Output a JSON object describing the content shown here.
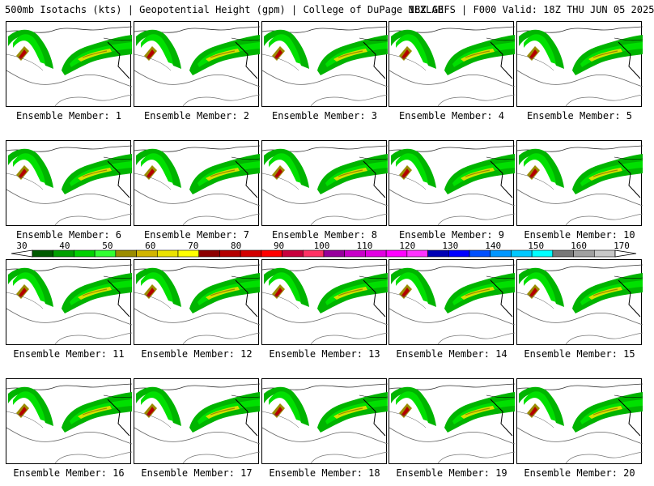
{
  "header": {
    "left": "500mb Isotachs (kts) | Geopotential Height (gpm) | College of DuPage NEXLAB",
    "right": "18Z GEFS | F000 Valid: 18Z THU JUN 05 2025"
  },
  "colorbar": {
    "ticks": [
      "30",
      "40",
      "50",
      "60",
      "70",
      "80",
      "90",
      "100",
      "110",
      "120",
      "130",
      "140",
      "150",
      "160",
      "170"
    ],
    "colors": [
      "#005a00",
      "#00a000",
      "#00d200",
      "#32ff32",
      "#9b8c00",
      "#d2b400",
      "#ebe100",
      "#ffff00",
      "#8c0000",
      "#b40000",
      "#d20000",
      "#ff0000",
      "#c8003c",
      "#ff3264",
      "#96009b",
      "#c800c8",
      "#e100e1",
      "#ff00ff",
      "#ff32ff",
      "#0000b4",
      "#0000ff",
      "#0050ff",
      "#0096ff",
      "#00c8ff",
      "#00ffff",
      "#787878",
      "#a0a0a0",
      "#c8c8c8"
    ]
  },
  "panels": [
    {
      "label": "Ensemble Member: 1"
    },
    {
      "label": "Ensemble Member: 2"
    },
    {
      "label": "Ensemble Member: 3"
    },
    {
      "label": "Ensemble Member: 4"
    },
    {
      "label": "Ensemble Member: 5"
    },
    {
      "label": "Ensemble Member: 6"
    },
    {
      "label": "Ensemble Member: 7"
    },
    {
      "label": "Ensemble Member: 8"
    },
    {
      "label": "Ensemble Member: 9"
    },
    {
      "label": "Ensemble Member: 10"
    },
    {
      "label": "Ensemble Member: 11"
    },
    {
      "label": "Ensemble Member: 12"
    },
    {
      "label": "Ensemble Member: 13"
    },
    {
      "label": "Ensemble Member: 14"
    },
    {
      "label": "Ensemble Member: 15"
    },
    {
      "label": "Ensemble Member: 16"
    },
    {
      "label": "Ensemble Member: 17"
    },
    {
      "label": "Ensemble Member: 18"
    },
    {
      "label": "Ensemble Member: 19"
    },
    {
      "label": "Ensemble Member: 20"
    }
  ]
}
